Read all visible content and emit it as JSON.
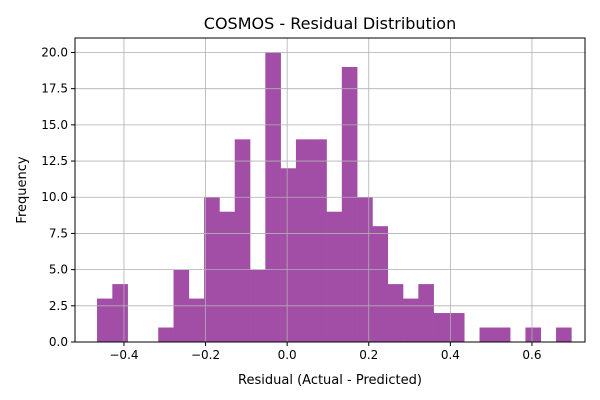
{
  "chart_data": {
    "type": "bar",
    "title": "COSMOS - Residual Distribution",
    "xlabel": "Residual (Actual - Predicted)",
    "ylabel": "Frequency",
    "xlim": [
      -0.52,
      0.73
    ],
    "ylim": [
      0,
      21
    ],
    "xticks": [
      -0.4,
      -0.2,
      0.0,
      0.2,
      0.4,
      0.6
    ],
    "xtick_labels": [
      "−0.4",
      "−0.2",
      "0.0",
      "0.2",
      "0.4",
      "0.6"
    ],
    "yticks": [
      0,
      2.5,
      5,
      7.5,
      10,
      12.5,
      15,
      17.5,
      20
    ],
    "ytick_labels": [
      "0.0",
      "2.5",
      "5.0",
      "7.5",
      "10.0",
      "12.5",
      "15.0",
      "17.5",
      "20.0"
    ],
    "grid": true,
    "bar_color": "#a24ea7",
    "bin_start": -0.466,
    "bin_width": 0.0375,
    "counts": [
      3,
      4,
      0,
      0,
      1,
      5,
      3,
      10,
      9,
      14,
      5,
      20,
      12,
      14,
      14,
      9,
      19,
      10,
      8,
      4,
      3,
      4,
      2,
      2,
      0,
      1,
      1,
      0,
      1,
      0,
      1
    ]
  }
}
